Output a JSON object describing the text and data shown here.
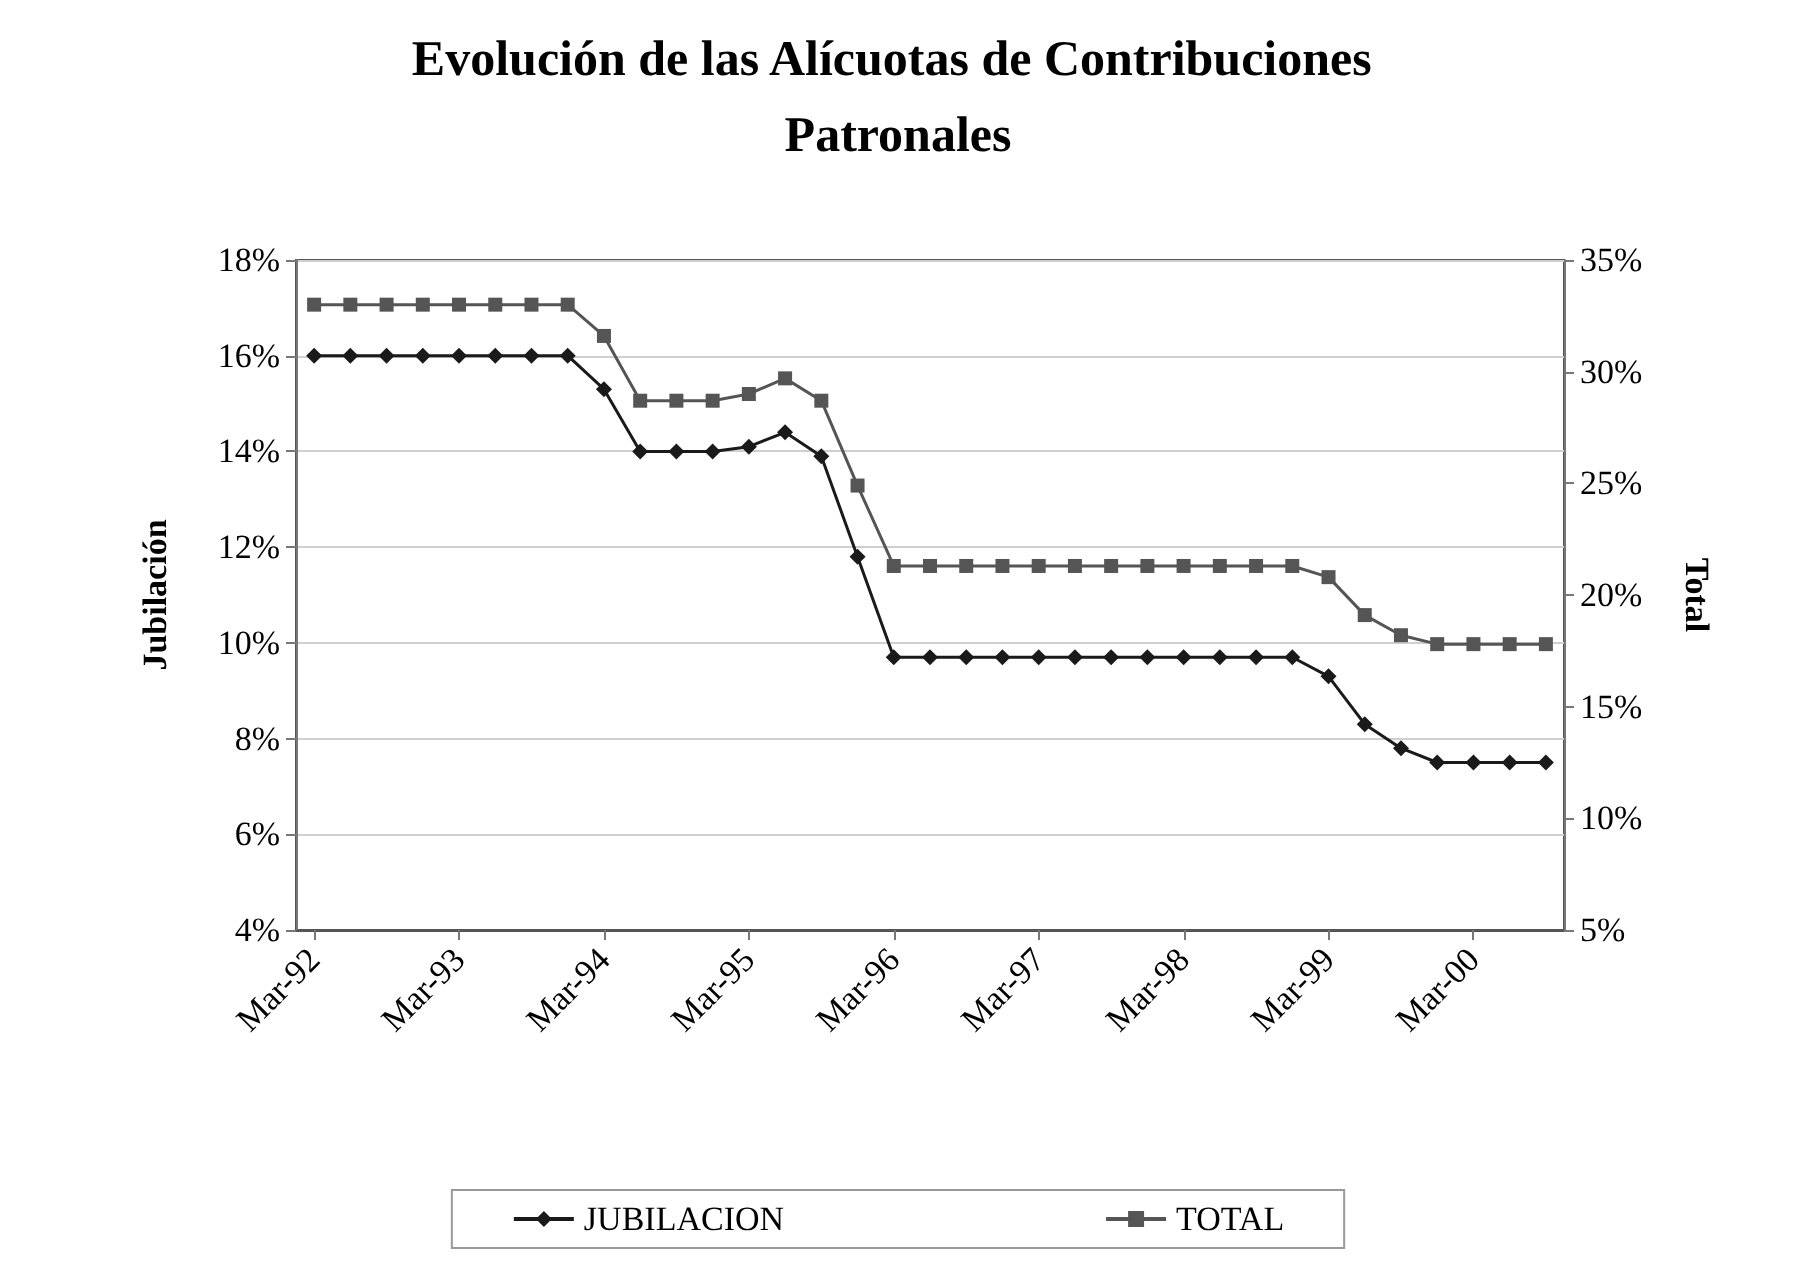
{
  "chart_data": {
    "type": "line",
    "title": "Evolución de las Alícuotas de Contribuciones Patronales",
    "ylabel": "Jubilación",
    "y2label": "Total",
    "categories": [
      "Mar-92",
      null,
      null,
      null,
      "Mar-93",
      null,
      null,
      null,
      "Mar-94",
      null,
      null,
      null,
      "Mar-95",
      null,
      null,
      null,
      "Mar-96",
      null,
      null,
      null,
      "Mar-97",
      null,
      null,
      null,
      "Mar-98",
      null,
      null,
      null,
      "Mar-99",
      null,
      null,
      null,
      "Mar-00",
      null,
      null
    ],
    "series": [
      {
        "name": "JUBILACION",
        "color": "#1a1a1a",
        "marker": "diamond",
        "values": [
          16,
          16,
          16,
          16,
          16,
          16,
          16,
          16,
          15.3,
          14,
          14,
          14,
          14.1,
          14.4,
          13.9,
          11.8,
          9.7,
          9.7,
          9.7,
          9.7,
          9.7,
          9.7,
          9.7,
          9.7,
          9.7,
          9.7,
          9.7,
          9.7,
          9.3,
          8.3,
          7.8,
          7.5,
          7.5,
          7.5,
          7.5
        ]
      },
      {
        "name": "TOTAL",
        "color": "#555555",
        "marker": "square",
        "axis": "y2",
        "values": [
          33,
          33,
          33,
          33,
          33,
          33,
          33,
          33,
          31.6,
          28.7,
          28.7,
          28.7,
          29,
          29.7,
          28.7,
          24.9,
          21.3,
          21.3,
          21.3,
          21.3,
          21.3,
          21.3,
          21.3,
          21.3,
          21.3,
          21.3,
          21.3,
          21.3,
          20.8,
          19.1,
          18.2,
          17.8,
          17.8,
          17.8,
          17.8
        ]
      }
    ],
    "ylim": [
      4,
      18
    ],
    "yticks": [
      {
        "value": 4,
        "label": "4%"
      },
      {
        "value": 6,
        "label": "6%"
      },
      {
        "value": 8,
        "label": "8%"
      },
      {
        "value": 10,
        "label": "10%"
      },
      {
        "value": 12,
        "label": "12%"
      },
      {
        "value": 14,
        "label": "14%"
      },
      {
        "value": 16,
        "label": "16%"
      },
      {
        "value": 18,
        "label": "18%"
      }
    ],
    "y2lim": [
      5,
      35
    ],
    "y2ticks": [
      {
        "value": 5,
        "label": "5%"
      },
      {
        "value": 10,
        "label": "10%"
      },
      {
        "value": 15,
        "label": "15%"
      },
      {
        "value": 20,
        "label": "20%"
      },
      {
        "value": 25,
        "label": "25%"
      },
      {
        "value": 30,
        "label": "30%"
      },
      {
        "value": 35,
        "label": "35%"
      }
    ],
    "grid": "y",
    "legend": "bottom",
    "line_style": "solid"
  }
}
